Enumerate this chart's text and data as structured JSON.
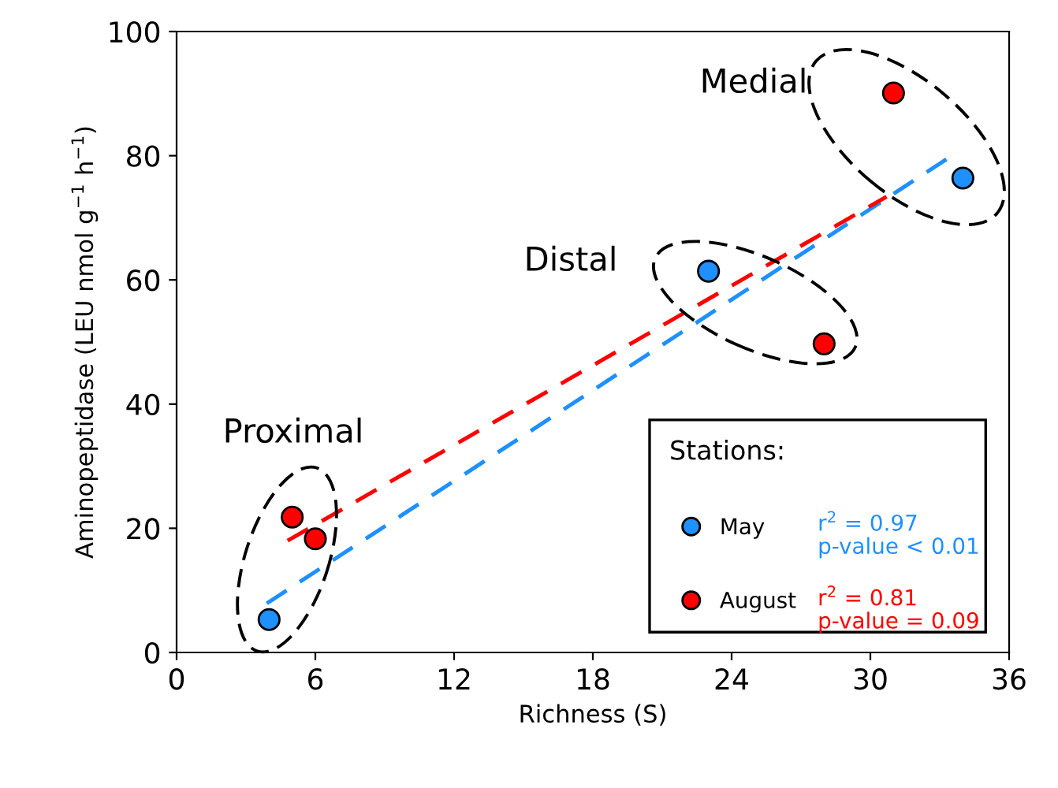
{
  "chart_data": {
    "type": "scatter",
    "xlabel": "Richness (S)",
    "ylabel": "Aminopeptidase (LEU nmol g$^{−1}$ h$^{−1}$)",
    "xlim": [
      0,
      36
    ],
    "ylim": [
      0,
      100
    ],
    "xticks": [
      0,
      6,
      12,
      18,
      24,
      30,
      36
    ],
    "yticks": [
      0,
      20,
      40,
      60,
      80,
      100
    ],
    "grid": false,
    "legend": "bottom right",
    "legend_title": "Stations:",
    "series": [
      {
        "name": "May",
        "marker": "circle",
        "color": "#1e90ff",
        "x": [
          4,
          23,
          34
        ],
        "values": [
          5.3,
          61.4,
          76.4
        ]
      },
      {
        "name": "August",
        "marker": "circle",
        "color": "#ff0000",
        "x": [
          5,
          6,
          28,
          31
        ],
        "values": [
          21.8,
          18.3,
          49.7,
          90.1
        ]
      },
      {
        "type": "line",
        "marker": "none",
        "color": "#1e90ff",
        "line_style": "dashed",
        "x": [
          3.9,
          33.4
        ],
        "values": [
          7.9,
          79.7
        ]
      },
      {
        "type": "line",
        "marker": "none",
        "color": "#ff0000",
        "line_style": "dashed",
        "x": [
          4.8,
          30.7
        ],
        "values": [
          18.0,
          73.4
        ]
      }
    ],
    "annotations": [
      "Proximal",
      "Distal",
      "Medial",
      "r$^{2}$ = 0.97\np-value < 0.01",
      "r$^{2}$ = 0.81\np-value = 0.09"
    ]
  }
}
